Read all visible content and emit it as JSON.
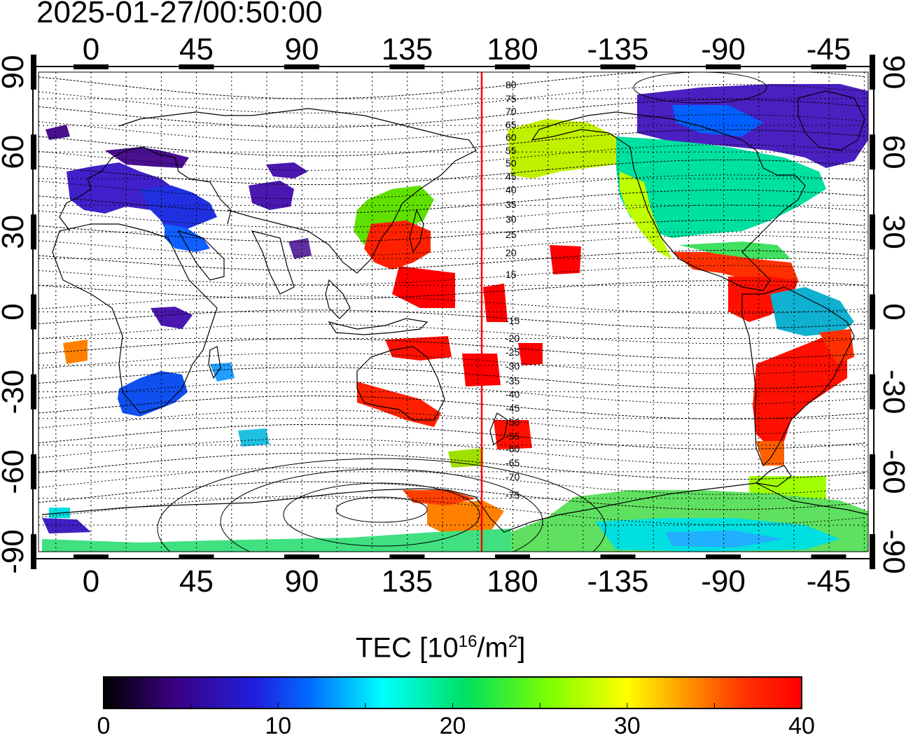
{
  "timestamp": "2025-01-27/00:50:00",
  "axes": {
    "top_ticks": [
      "0",
      "45",
      "90",
      "135",
      "180",
      "-135",
      "-90",
      "-45"
    ],
    "bottom_ticks": [
      "0",
      "45",
      "90",
      "135",
      "180",
      "-135",
      "-90",
      "-45"
    ],
    "left_ticks": [
      "90",
      "60",
      "30",
      "0",
      "-30",
      "-60",
      "-90"
    ],
    "right_ticks": [
      "90",
      "60",
      "30",
      "0",
      "-30",
      "-60",
      "-90"
    ]
  },
  "contour_labels": [
    "80",
    "75",
    "70",
    "65",
    "60",
    "55",
    "50",
    "45",
    "40",
    "35",
    "30",
    "25",
    "20",
    "15",
    "-15",
    "-20",
    "-25",
    "-30",
    "-35",
    "-40",
    "-45",
    "-50",
    "-55",
    "-60",
    "-65",
    "-70",
    "-75"
  ],
  "colorbar": {
    "title_main": "TEC  [10",
    "title_exp": "16",
    "title_unit": "/m",
    "title_unit_exp": "2",
    "title_close": "]",
    "ticks": [
      "0",
      "10",
      "20",
      "30",
      "40"
    ],
    "range": [
      0,
      40
    ],
    "stops": [
      "#000000",
      "#3a0080",
      "#2020e0",
      "#0070ff",
      "#00ffff",
      "#00e060",
      "#80ff00",
      "#ffff00",
      "#ff9000",
      "#ff3000",
      "#ff0000"
    ]
  },
  "terminator_line_color": "#ff0000"
}
